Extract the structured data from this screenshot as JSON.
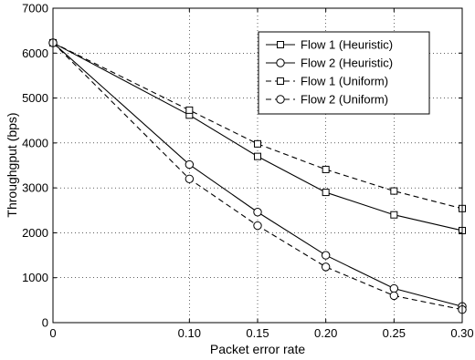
{
  "chart_data": {
    "type": "line",
    "title": "",
    "xlabel": "Packet error rate",
    "ylabel": "Throughgput (bps)",
    "x": [
      0,
      0.1,
      0.15,
      0.2,
      0.25,
      0.3
    ],
    "x_tick_labels": [
      "0",
      "0.10",
      "0.15",
      "0.20",
      "0.25",
      "0.30"
    ],
    "y_ticks": [
      0,
      1000,
      2000,
      3000,
      4000,
      5000,
      6000,
      7000
    ],
    "xlim": [
      0,
      0.3
    ],
    "ylim": [
      0,
      7000
    ],
    "grid": true,
    "legend_position": "top-right",
    "series": [
      {
        "name": "Flow 1 (Heuristic)",
        "marker": "square",
        "line": "solid",
        "values": [
          6230,
          4620,
          3700,
          2900,
          2400,
          2050
        ]
      },
      {
        "name": "Flow 2 (Heuristic)",
        "marker": "circle",
        "line": "solid",
        "values": [
          6230,
          3520,
          2460,
          1500,
          760,
          360
        ]
      },
      {
        "name": "Flow 1 (Uniform)",
        "marker": "square",
        "line": "dashed",
        "values": [
          6230,
          4730,
          3980,
          3410,
          2930,
          2540
        ]
      },
      {
        "name": "Flow 2 (Uniform)",
        "marker": "circle",
        "line": "dashed",
        "values": [
          6230,
          3200,
          2160,
          1240,
          600,
          290
        ]
      }
    ]
  }
}
